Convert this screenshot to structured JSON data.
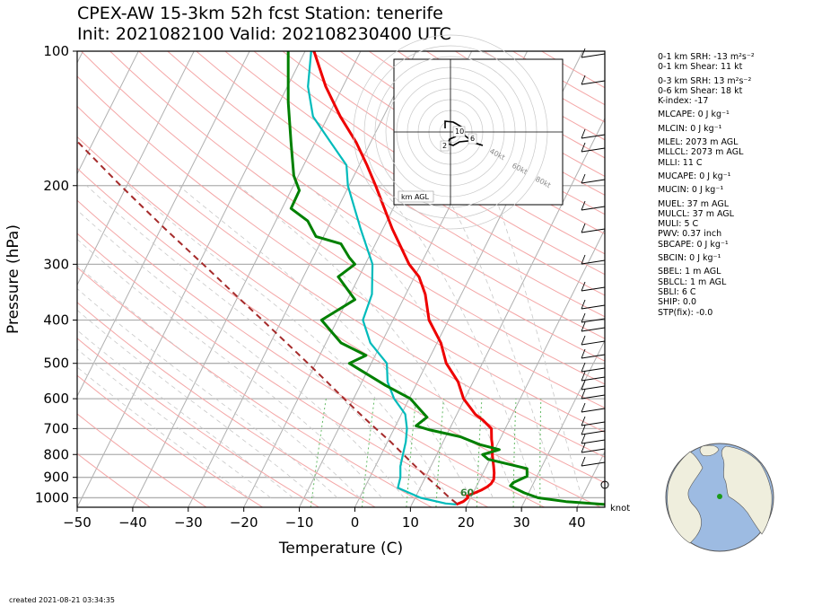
{
  "title": {
    "line1": "CPEX-AW 15-3km  52h fcst  Station: tenerife",
    "line2": "Init: 2021082100  Valid: 202108230400 UTC"
  },
  "chart_data": {
    "type": "skew-t",
    "xlabel": "Temperature (C)",
    "ylabel": "Pressure (hPa)",
    "xlim": [
      -50,
      45
    ],
    "ylim_hpa": [
      1050,
      100
    ],
    "y_scale": "log",
    "grid": true,
    "x_ticks": [
      "−50",
      "−40",
      "−30",
      "−20",
      "−10",
      "0",
      "10",
      "20",
      "30",
      "40"
    ],
    "x_tick_values": [
      -50,
      -40,
      -30,
      -20,
      -10,
      0,
      10,
      20,
      30,
      40
    ],
    "y_ticks": [
      "100",
      "200",
      "300",
      "400",
      "500",
      "600",
      "700",
      "800",
      "900",
      "1000"
    ],
    "y_tick_values": [
      100,
      200,
      300,
      400,
      500,
      600,
      700,
      800,
      900,
      1000
    ],
    "series": [
      {
        "role": "temperature",
        "color": "#ee0000",
        "points": [
          [
            1035,
            18
          ],
          [
            1020,
            19
          ],
          [
            1000,
            19.5
          ],
          [
            990,
            19.2
          ],
          [
            975,
            20.3
          ],
          [
            960,
            21.3
          ],
          [
            945,
            22
          ],
          [
            930,
            22.4
          ],
          [
            910,
            22.5
          ],
          [
            880,
            22
          ],
          [
            850,
            21.3
          ],
          [
            800,
            20
          ],
          [
            760,
            19.1
          ],
          [
            740,
            18.5
          ],
          [
            700,
            17.5
          ],
          [
            670,
            15.2
          ],
          [
            650,
            13.3
          ],
          [
            600,
            9.8
          ],
          [
            550,
            7.3
          ],
          [
            500,
            3.5
          ],
          [
            450,
            0.7
          ],
          [
            400,
            -3.5
          ],
          [
            350,
            -6.5
          ],
          [
            320,
            -9.2
          ],
          [
            300,
            -12.1
          ],
          [
            250,
            -18.3
          ],
          [
            200,
            -25.2
          ],
          [
            180,
            -28.6
          ],
          [
            160,
            -32.6
          ],
          [
            140,
            -37.8
          ],
          [
            120,
            -43.1
          ],
          [
            100,
            -48.4
          ]
        ]
      },
      {
        "role": "dewpoint",
        "color": "#00bbbb",
        "points": [
          [
            1035,
            18
          ],
          [
            1030,
            16
          ],
          [
            1000,
            11
          ],
          [
            950,
            6
          ],
          [
            900,
            5.5
          ],
          [
            850,
            4.5
          ],
          [
            800,
            3.9
          ],
          [
            750,
            3.3
          ],
          [
            700,
            2.3
          ],
          [
            650,
            0.7
          ],
          [
            600,
            -2.7
          ],
          [
            550,
            -5.4
          ],
          [
            500,
            -7.2
          ],
          [
            450,
            -12
          ],
          [
            400,
            -15.4
          ],
          [
            350,
            -16.1
          ],
          [
            300,
            -18.7
          ],
          [
            250,
            -24
          ],
          [
            200,
            -30.2
          ],
          [
            180,
            -32.3
          ],
          [
            160,
            -37.2
          ],
          [
            140,
            -42.7
          ],
          [
            120,
            -46.3
          ],
          [
            100,
            -48.9
          ]
        ]
      },
      {
        "role": "parcel",
        "color": "#a52a2a",
        "points": [
          [
            1030,
            18
          ],
          [
            1000,
            16.2
          ],
          [
            950,
            13.4
          ],
          [
            900,
            10.3
          ],
          [
            850,
            7.2
          ],
          [
            800,
            4
          ],
          [
            750,
            0.6
          ],
          [
            700,
            -3.3
          ],
          [
            650,
            -7.4
          ],
          [
            600,
            -11.7
          ],
          [
            550,
            -16.3
          ],
          [
            500,
            -21.4
          ],
          [
            450,
            -27.1
          ],
          [
            400,
            -33.5
          ],
          [
            350,
            -40.8
          ],
          [
            300,
            -49.2
          ],
          [
            250,
            -59.2
          ],
          [
            200,
            -71.1
          ],
          [
            150,
            -86
          ],
          [
            123,
            -95
          ]
        ]
      },
      {
        "role": "relative-humidity",
        "color": "#008000",
        "x_units": "percent",
        "points": [
          [
            1035,
            45
          ],
          [
            1020,
            38
          ],
          [
            1000,
            33
          ],
          [
            975,
            30.5
          ],
          [
            955,
            29
          ],
          [
            940,
            28
          ],
          [
            925,
            28.5
          ],
          [
            895,
            31
          ],
          [
            860,
            31
          ],
          [
            820,
            24
          ],
          [
            800,
            23
          ],
          [
            780,
            26
          ],
          [
            760,
            22.5
          ],
          [
            730,
            19
          ],
          [
            705,
            13.5
          ],
          [
            690,
            11
          ],
          [
            660,
            13
          ],
          [
            630,
            11.5
          ],
          [
            600,
            10
          ],
          [
            560,
            5.5
          ],
          [
            500,
            -1
          ],
          [
            480,
            2
          ],
          [
            450,
            -2.5
          ],
          [
            400,
            -6
          ],
          [
            360,
            0
          ],
          [
            320,
            -3
          ],
          [
            300,
            0
          ],
          [
            290,
            -1
          ],
          [
            270,
            -2.5
          ],
          [
            260,
            -7
          ],
          [
            240,
            -8.5
          ],
          [
            225,
            -11.5
          ],
          [
            205,
            -10
          ],
          [
            190,
            -11
          ],
          [
            160,
            -11.5
          ],
          [
            130,
            -12
          ],
          [
            100,
            -12
          ]
        ]
      }
    ],
    "annotations": [
      {
        "text": "60",
        "pressure_hpa": 1000,
        "temp_c": 20,
        "color": "#2e7d32"
      }
    ],
    "wind_barb_units": "knot",
    "hodograph": {
      "units": "km AGL",
      "height_labels": [
        "10",
        "6",
        "2"
      ],
      "ring_labels": [
        "40kt",
        "60kt",
        "80kt"
      ]
    }
  },
  "indices": {
    "srh1": "0-1 km SRH: -13 m²s⁻²",
    "shear1": "0-1 km Shear: 11 kt",
    "srh3": "0-3 km SRH: 13 m²s⁻²",
    "shear6": "0-6 km Shear: 18 kt",
    "kindex": "K-index: -17",
    "mlcape": "MLCAPE: 0 J kg⁻¹",
    "mlcin": "MLCIN: 0 J kg⁻¹",
    "mlel": "MLEL: 2073 m AGL",
    "mllcl": "MLLCL: 2073 m AGL",
    "mlli": "MLLI: 11 C",
    "mucape": "MUCAPE: 0 J kg⁻¹",
    "mucin": "MUCIN: 0 J kg⁻¹",
    "muel": "MUEL: 37 m AGL",
    "mulcl": "MULCL: 37 m AGL",
    "muli": "MULI: 5 C",
    "pwv": "PWV: 0.37 inch",
    "sbcape": "SBCAPE: 0 J kg⁻¹",
    "sbcin": "SBCIN: 0 J kg⁻¹",
    "sbel": "SBEL: 1 m AGL",
    "sblcl": "SBLCL: 1 m AGL",
    "sbli": "SBLI: 6 C",
    "ship": "SHIP: 0.0",
    "stp": "STP(fix): -0.0"
  },
  "footer": {
    "created": "created 2021-08-21 03:34:35"
  },
  "colors": {
    "temperature": "#ee0000",
    "dewpoint": "#00bbbb",
    "parcel": "#a52a2a",
    "relative_humidity": "#008000",
    "dry_adiabat": "#f4a6a6",
    "moist_adiabat": "#c8c8c8",
    "mixing_ratio": "#66bb66",
    "isotherm": "#b0b0b0",
    "ocean": "#9dbbe2",
    "land": "#efeedd",
    "station_marker": "#1a9a1a"
  }
}
